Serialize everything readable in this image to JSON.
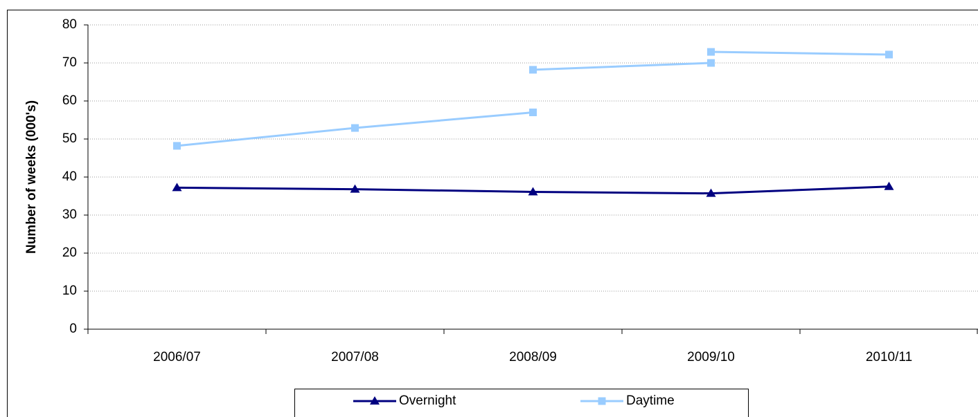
{
  "chart_data": {
    "type": "line",
    "y_label": "Number of weeks (000's)",
    "xlim": [
      -0.5,
      4.5
    ],
    "xticks": [
      {
        "value": 0,
        "label": "2006/07"
      },
      {
        "value": 1,
        "label": "2007/08"
      },
      {
        "value": 2,
        "label": "2008/09"
      },
      {
        "value": 3,
        "label": "2009/10"
      },
      {
        "value": 4,
        "label": "2010/11"
      }
    ],
    "ylim": [
      0,
      80
    ],
    "yticks": [
      0,
      10,
      20,
      30,
      40,
      50,
      60,
      70,
      80
    ],
    "grid": true,
    "legend": "bottom",
    "series": [
      {
        "name": "Overnight",
        "color": "#000080",
        "marker": "triangle",
        "x": [
          0,
          1,
          2,
          3,
          4
        ],
        "values": [
          37.2,
          36.8,
          36.1,
          35.7,
          37.5
        ]
      },
      {
        "name": "Daytime",
        "color": "#99ccff",
        "marker": "square",
        "x": [
          0,
          1,
          2,
          null,
          2,
          3,
          null,
          3,
          4
        ],
        "values": [
          48.2,
          52.9,
          57,
          null,
          68.2,
          70,
          null,
          72.9,
          72.2
        ]
      }
    ]
  }
}
